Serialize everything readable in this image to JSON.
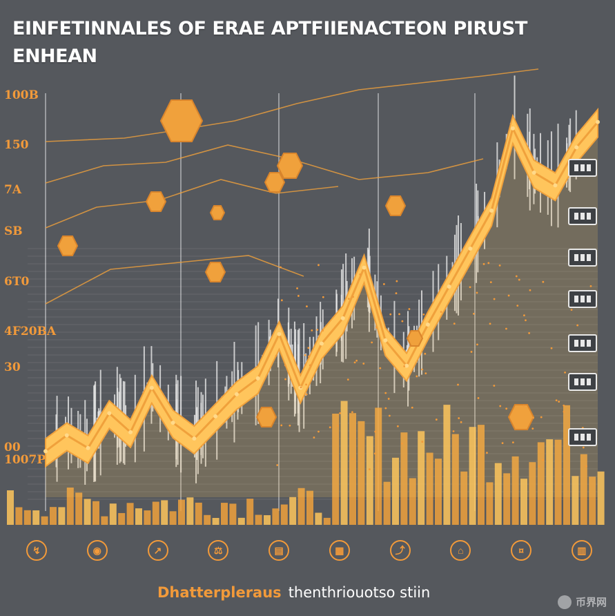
{
  "title_lines": [
    "EINFETINNALES OF ERAE APTFIIENACTEON  PIRUST",
    "ENHEAN"
  ],
  "y_tick_labels": [
    "100B",
    "150",
    "7A",
    "SB",
    "6T0",
    "4F20BA",
    "30",
    "00",
    "1007P"
  ],
  "footer": {
    "icons": [
      {
        "icon": "finance-icon",
        "glyph": "↯"
      },
      {
        "icon": "coin-icon",
        "glyph": "◉"
      },
      {
        "icon": "chart-icon",
        "glyph": "↗"
      },
      {
        "icon": "balance-icon",
        "glyph": "⚖"
      },
      {
        "icon": "document-icon",
        "glyph": "▤"
      },
      {
        "icon": "wallet-icon",
        "glyph": "▦"
      },
      {
        "icon": "growth-icon",
        "glyph": "⤴"
      },
      {
        "icon": "bank-icon",
        "glyph": "⌂"
      },
      {
        "icon": "currency-icon",
        "glyph": "¤"
      },
      {
        "icon": "report-icon",
        "glyph": "▥"
      }
    ],
    "brand_a": "Dhatterpleraus",
    "brand_b": "thenthriouotso stiin"
  },
  "watermark": "币界网",
  "colors": {
    "background": "#55585d",
    "accent": "#f29a3a",
    "ribbon": "#ffc55c",
    "ribbon_shadow": "#f0a13c",
    "spikes": "#e8e8e8"
  },
  "chart_data": {
    "type": "area",
    "x": [
      0,
      1,
      2,
      3,
      4,
      5,
      6,
      7,
      8,
      9,
      10,
      11,
      12,
      13,
      14,
      15,
      16,
      17,
      18,
      19,
      20,
      21,
      22,
      23,
      24,
      25,
      26
    ],
    "series": [
      {
        "values": [
          8,
          13,
          9,
          20,
          14,
          28,
          17,
          12,
          19,
          26,
          31,
          45,
          28,
          42,
          50,
          66,
          43,
          35,
          48,
          60,
          72,
          84,
          110,
          96,
          92,
          104,
          112
        ]
      }
    ],
    "ylim": [
      0,
      120
    ],
    "grid": true,
    "xlabel": "",
    "ylabel": ""
  }
}
